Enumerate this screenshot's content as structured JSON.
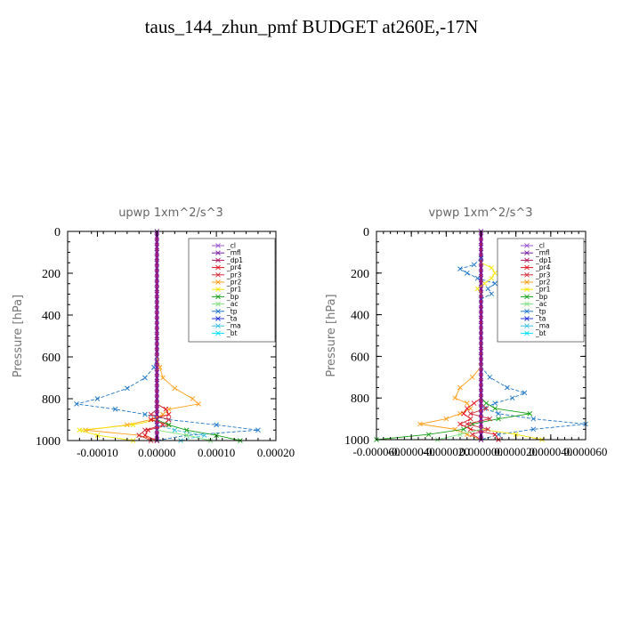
{
  "page_title": "taus_144_zhun_pmf  BUDGET at260E,-17N",
  "colors": {
    "cl": "#9b59d0",
    "mfl": "#7b1fa2",
    "dp1": "#b0185f",
    "pr4": "#e0141e",
    "pr3": "#d02c3c",
    "pr2": "#ff9f1c",
    "pr1": "#f5e400",
    "bp": "#19a219",
    "ac": "#7ee37e",
    "tp": "#1f78c8",
    "ta": "#2a37d6",
    "ma": "#3bc0e0",
    "bt": "#00e0ff"
  },
  "chart_data": [
    {
      "type": "line",
      "title": "upwp    1xm^2/s^3",
      "ylabel": "Pressure [hPa]",
      "xlabel": "",
      "xlim": [
        -0.00015,
        0.0002
      ],
      "ylim": [
        1000,
        0
      ],
      "y_reversed": true,
      "yticks": [
        0,
        200,
        400,
        600,
        800,
        1000
      ],
      "ytick_labels": [
        "0",
        "200",
        "400",
        "600",
        "800",
        "1000"
      ],
      "xticks": [
        -0.0001,
        0,
        0.0001,
        0.0002
      ],
      "xtick_labels": [
        "-0.00010",
        "0.00000",
        "0.00010",
        "0.00020"
      ],
      "legend": {
        "position": "top-right",
        "entries": [
          "_cl",
          "_mfl",
          "_dp1",
          "_pr4",
          "_pr3",
          "_pr2",
          "_pr1",
          "_bp",
          "_ac",
          "_tp",
          "_ta",
          "_ma",
          "_bt"
        ]
      },
      "series": [
        {
          "key": "cl",
          "y": [
            0,
            1000
          ],
          "x": [
            0,
            0
          ]
        },
        {
          "key": "mfl",
          "y": [
            0,
            1000
          ],
          "x": [
            0,
            0
          ]
        },
        {
          "key": "dp1",
          "y": [
            0,
            1000
          ],
          "x": [
            0,
            0
          ]
        },
        {
          "key": "tp",
          "y": [
            600,
            650,
            700,
            750,
            800,
            825,
            850,
            875,
            900,
            925,
            950,
            975,
            1000
          ],
          "x": [
            0,
            -5e-06,
            -2e-05,
            -5e-05,
            -0.0001,
            -0.000135,
            -7e-05,
            -2e-05,
            2e-05,
            0.0001,
            0.00017,
            5e-05,
            0
          ]
        },
        {
          "key": "pr2",
          "y": [
            600,
            650,
            700,
            750,
            800,
            825,
            850,
            875,
            900,
            925,
            950,
            975,
            1000
          ],
          "x": [
            0,
            5e-06,
            1e-05,
            3e-05,
            6e-05,
            7e-05,
            2e-05,
            1e-05,
            -1e-05,
            -5e-05,
            -0.00012,
            -3e-05,
            0
          ]
        },
        {
          "key": "pr1",
          "y": [
            900,
            925,
            950,
            975,
            1000
          ],
          "x": [
            0,
            -4e-05,
            -0.00013,
            -0.0001,
            -4e-05
          ]
        },
        {
          "key": "pr4",
          "y": [
            825,
            850,
            875,
            900,
            925,
            950,
            975,
            1000
          ],
          "x": [
            0,
            1.5e-05,
            2e-05,
            -1e-05,
            2e-05,
            -1.5e-05,
            -2e-05,
            0
          ]
        },
        {
          "key": "pr3",
          "y": [
            850,
            875,
            900,
            925,
            950,
            975,
            1000
          ],
          "x": [
            0,
            -1e-05,
            2e-05,
            1e-05,
            -2e-05,
            -3e-05,
            -1e-05
          ]
        },
        {
          "key": "bp",
          "y": [
            900,
            925,
            950,
            975,
            1000
          ],
          "x": [
            0,
            2e-05,
            5e-05,
            0.0001,
            0.00014
          ]
        },
        {
          "key": "ac",
          "y": [
            950,
            975,
            1000
          ],
          "x": [
            0,
            5e-05,
            9e-05
          ]
        },
        {
          "key": "ma",
          "y": [
            925,
            950,
            975,
            1000
          ],
          "x": [
            0,
            3e-05,
            8e-05,
            4e-05
          ]
        }
      ]
    },
    {
      "type": "line",
      "title": "vpwp    1xm^2/s^3",
      "ylabel": "Pressure [hPa]",
      "xlabel": "",
      "xlim": [
        -6e-05,
        6e-05
      ],
      "ylim": [
        1000,
        0
      ],
      "y_reversed": true,
      "yticks": [
        0,
        200,
        400,
        600,
        800,
        1000
      ],
      "ytick_labels": [
        "0",
        "200",
        "400",
        "600",
        "800",
        "1000"
      ],
      "xticks": [
        -6e-05,
        -4e-05,
        -2e-05,
        0,
        2e-05,
        4e-05,
        6e-05
      ],
      "xtick_labels": [
        "-0.000060",
        "-0.000040",
        "-0.000020",
        "0.000000",
        "0.000020",
        "0.000040",
        "0.000060"
      ],
      "legend": {
        "position": "top-right",
        "entries": [
          "_cl",
          "_mfl",
          "_dp1",
          "_pr4",
          "_pr3",
          "_pr2",
          "_pr1",
          "_bp",
          "_ac",
          "_tp",
          "_ta",
          "_ma",
          "_bt"
        ]
      },
      "series": [
        {
          "key": "cl",
          "y": [
            0,
            1000
          ],
          "x": [
            0,
            0
          ]
        },
        {
          "key": "mfl",
          "y": [
            0,
            1000
          ],
          "x": [
            0,
            0
          ]
        },
        {
          "key": "dp1",
          "y": [
            0,
            1000
          ],
          "x": [
            0,
            0
          ]
        },
        {
          "key": "tp",
          "y": [
            130,
            160,
            180,
            200,
            225,
            250,
            275,
            300,
            325
          ],
          "x": [
            0,
            -4e-06,
            -1.2e-05,
            -8e-06,
            -2e-06,
            8e-06,
            4e-06,
            6e-06,
            0
          ]
        },
        {
          "key": "pr1",
          "y": [
            150,
            175,
            200,
            225,
            250,
            275,
            300
          ],
          "x": [
            0,
            6e-06,
            8e-06,
            6e-06,
            2e-06,
            -2e-06,
            0
          ]
        },
        {
          "key": "tp",
          "y": [
            650,
            700,
            750,
            775,
            800,
            825,
            850,
            875,
            900,
            925,
            950,
            975,
            1000
          ],
          "x": [
            0,
            5e-06,
            1.5e-05,
            2.5e-05,
            1.8e-05,
            8e-06,
            2e-06,
            1e-05,
            3e-05,
            6e-05,
            3e-05,
            1e-05,
            0
          ]
        },
        {
          "key": "pr2",
          "y": [
            650,
            700,
            750,
            800,
            825,
            850,
            875,
            900,
            925,
            950,
            975,
            1000
          ],
          "x": [
            0,
            -5e-06,
            -1.2e-05,
            -1.5e-05,
            -8e-06,
            -6e-06,
            -1.2e-05,
            -2e-05,
            -3.5e-05,
            -1.5e-05,
            -8e-06,
            0
          ]
        },
        {
          "key": "pr1",
          "y": [
            950,
            975,
            1000
          ],
          "x": [
            0,
            2e-05,
            3.5e-05
          ]
        },
        {
          "key": "bp",
          "y": [
            800,
            825,
            850,
            875,
            900,
            925,
            950,
            975,
            1000
          ],
          "x": [
            0,
            3e-06,
            8e-06,
            2.8e-05,
            1e-05,
            -5e-06,
            -1e-05,
            -3e-05,
            -6e-05
          ]
        },
        {
          "key": "pr4",
          "y": [
            800,
            825,
            850,
            875,
            900,
            925,
            950,
            975,
            1000
          ],
          "x": [
            0,
            -4e-06,
            -8e-06,
            -1e-05,
            -6e-06,
            -1.2e-05,
            -6e-06,
            8e-06,
            1e-05
          ]
        },
        {
          "key": "pr3",
          "y": [
            825,
            850,
            875,
            900,
            925,
            950,
            975,
            1000
          ],
          "x": [
            0,
            3e-06,
            -6e-06,
            5e-06,
            -8e-06,
            4e-06,
            -5e-06,
            0
          ]
        },
        {
          "key": "ac",
          "y": [
            950,
            975,
            1000
          ],
          "x": [
            0,
            -1.2e-05,
            -2.5e-05
          ]
        }
      ]
    }
  ]
}
